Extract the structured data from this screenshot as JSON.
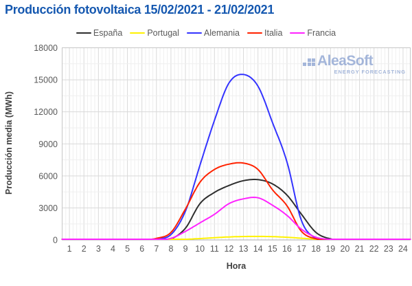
{
  "title": "Producción fotovoltaica 15/02/2021 - 21/02/2021",
  "watermark": {
    "brand": "AleaSoft",
    "tagline": "ENERGY FORECASTING"
  },
  "colors": {
    "title": "#1558b0",
    "axis_text": "#595959",
    "axis_title_text": "#404040",
    "grid_major": "#d9d9d9",
    "grid_minor": "#efefef",
    "plot_border": "#c6c6c6",
    "axis_line": "#adadad",
    "watermark": "#8ca3d1"
  },
  "chart_data": {
    "type": "line",
    "title": "Producción fotovoltaica 15/02/2021 - 21/02/2021",
    "xlabel": "Hora",
    "ylabel": "Producción media (MWh)",
    "x": [
      1,
      2,
      3,
      4,
      5,
      6,
      7,
      8,
      9,
      10,
      11,
      12,
      13,
      14,
      15,
      16,
      17,
      18,
      19,
      20,
      21,
      22,
      23,
      24
    ],
    "ylim": [
      0,
      18000
    ],
    "y_major_ticks": [
      0,
      3000,
      6000,
      9000,
      12000,
      15000,
      18000
    ],
    "y_minor_step": 1500,
    "grid": true,
    "legend_position": "top",
    "series": [
      {
        "name": "España",
        "color": "#2e2e2e",
        "values": [
          0,
          0,
          0,
          0,
          0,
          0,
          0,
          100,
          1100,
          3400,
          4450,
          5100,
          5550,
          5650,
          5250,
          4200,
          2400,
          700,
          100,
          0,
          0,
          0,
          0,
          0
        ]
      },
      {
        "name": "Portugal",
        "color": "#fff200",
        "values": [
          0,
          0,
          0,
          0,
          0,
          0,
          0,
          20,
          60,
          130,
          210,
          280,
          320,
          330,
          310,
          250,
          160,
          70,
          20,
          0,
          0,
          0,
          0,
          0
        ]
      },
      {
        "name": "Alemania",
        "color": "#3333ff",
        "values": [
          0,
          0,
          0,
          0,
          0,
          0,
          100,
          500,
          2700,
          7000,
          11200,
          14700,
          15500,
          14400,
          11000,
          7300,
          1800,
          150,
          0,
          0,
          0,
          0,
          0,
          0
        ]
      },
      {
        "name": "Italia",
        "color": "#ff2200",
        "values": [
          0,
          0,
          0,
          0,
          0,
          0,
          150,
          700,
          2900,
          5400,
          6600,
          7100,
          7200,
          6600,
          4700,
          3200,
          800,
          100,
          0,
          0,
          0,
          0,
          0,
          0
        ]
      },
      {
        "name": "Francia",
        "color": "#ff22ff",
        "values": [
          0,
          0,
          0,
          0,
          0,
          0,
          0,
          150,
          800,
          1600,
          2400,
          3400,
          3850,
          3950,
          3250,
          2300,
          1000,
          250,
          50,
          0,
          0,
          0,
          0,
          0
        ]
      }
    ]
  }
}
